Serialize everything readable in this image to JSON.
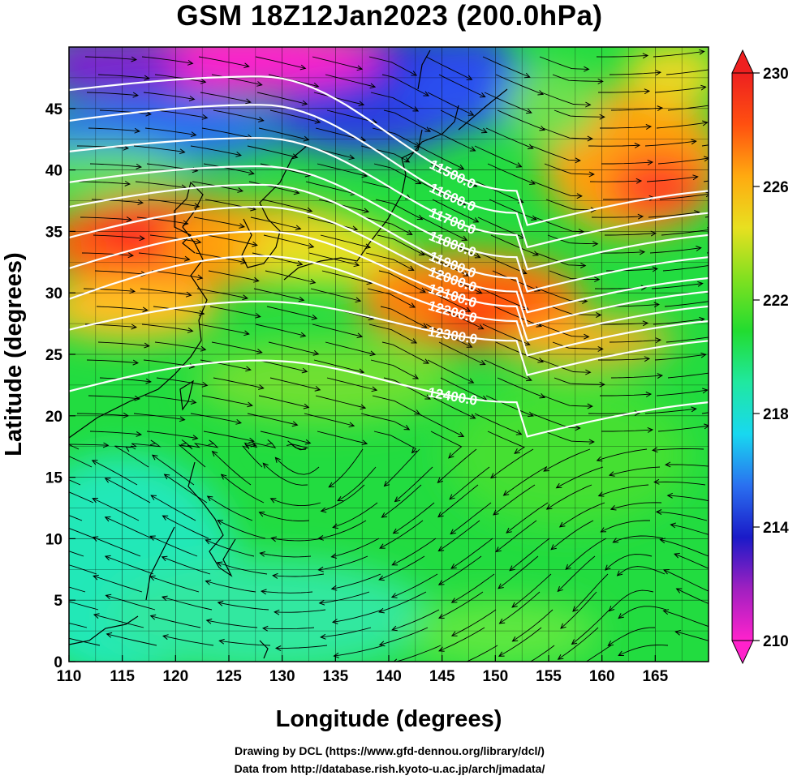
{
  "title": "GSM 18Z12Jan2023 (200.0hPa)",
  "x_axis": {
    "label": "Longitude (degrees)",
    "ticks": [
      "110",
      "115",
      "120",
      "125",
      "130",
      "135",
      "140",
      "145",
      "150",
      "155",
      "160",
      "165"
    ],
    "range": [
      110,
      170
    ]
  },
  "y_axis": {
    "label": "Latitude  (degrees)",
    "ticks": [
      "0",
      "5",
      "10",
      "15",
      "20",
      "25",
      "30",
      "35",
      "40",
      "45"
    ],
    "range": [
      0,
      50
    ]
  },
  "colorbar": {
    "min": 210,
    "max": 230,
    "ticks": [
      "230",
      "226",
      "222",
      "218",
      "214",
      "210"
    ],
    "colors": [
      "#ff22cc",
      "#a020c0",
      "#1a1ac8",
      "#2a70f0",
      "#18d8f0",
      "#20e8a0",
      "#22dc30",
      "#80e020",
      "#e8e020",
      "#ffaa10",
      "#ff5010",
      "#ee2020"
    ]
  },
  "contours": {
    "color": "#ffffff",
    "labels": [
      "11500.0",
      "11600.0",
      "11700.0",
      "11800.0",
      "11900.0",
      "12000.0",
      "12100.0",
      "12200.0",
      "12300.0",
      "12400.0"
    ]
  },
  "credits": {
    "line1": "Drawing by DCL (https://www.gfd-dennou.org/library/dcl/)",
    "line2": "Data from http://database.rish.kyoto-u.ac.jp/arch/jmadata/"
  }
}
